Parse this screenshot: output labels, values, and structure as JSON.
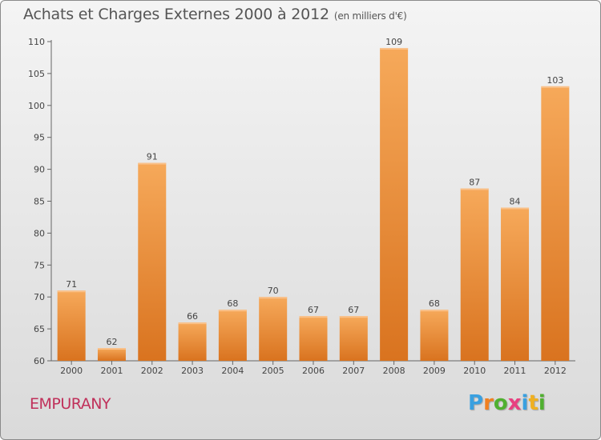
{
  "title": "Achats et Charges Externes 2000 à 2012",
  "subtitle": "(en milliers d'€)",
  "city": "EMPURANY",
  "logo": {
    "letters": [
      "P",
      "r",
      "o",
      "x",
      "i",
      "t",
      "i"
    ],
    "colors": [
      "#3aa0e0",
      "#f08020",
      "#50b030",
      "#e84080",
      "#3aa0e0",
      "#f0b020",
      "#50b030"
    ]
  },
  "chart_data": {
    "type": "bar",
    "title": "Achats et Charges Externes 2000 à 2012",
    "subtitle": "(en milliers d'€)",
    "categories": [
      "2000",
      "2001",
      "2002",
      "2003",
      "2004",
      "2005",
      "2006",
      "2007",
      "2008",
      "2009",
      "2010",
      "2011",
      "2012"
    ],
    "values": [
      71,
      62,
      91,
      66,
      68,
      70,
      67,
      67,
      109,
      68,
      87,
      84,
      103
    ],
    "ylim": [
      60,
      110
    ],
    "yticks": [
      60,
      65,
      70,
      75,
      80,
      85,
      90,
      95,
      100,
      105,
      110
    ],
    "grid": false,
    "colors": {
      "bar_light": "#f6a95a",
      "bar_dark": "#d9731f",
      "axis": "#555555"
    }
  }
}
